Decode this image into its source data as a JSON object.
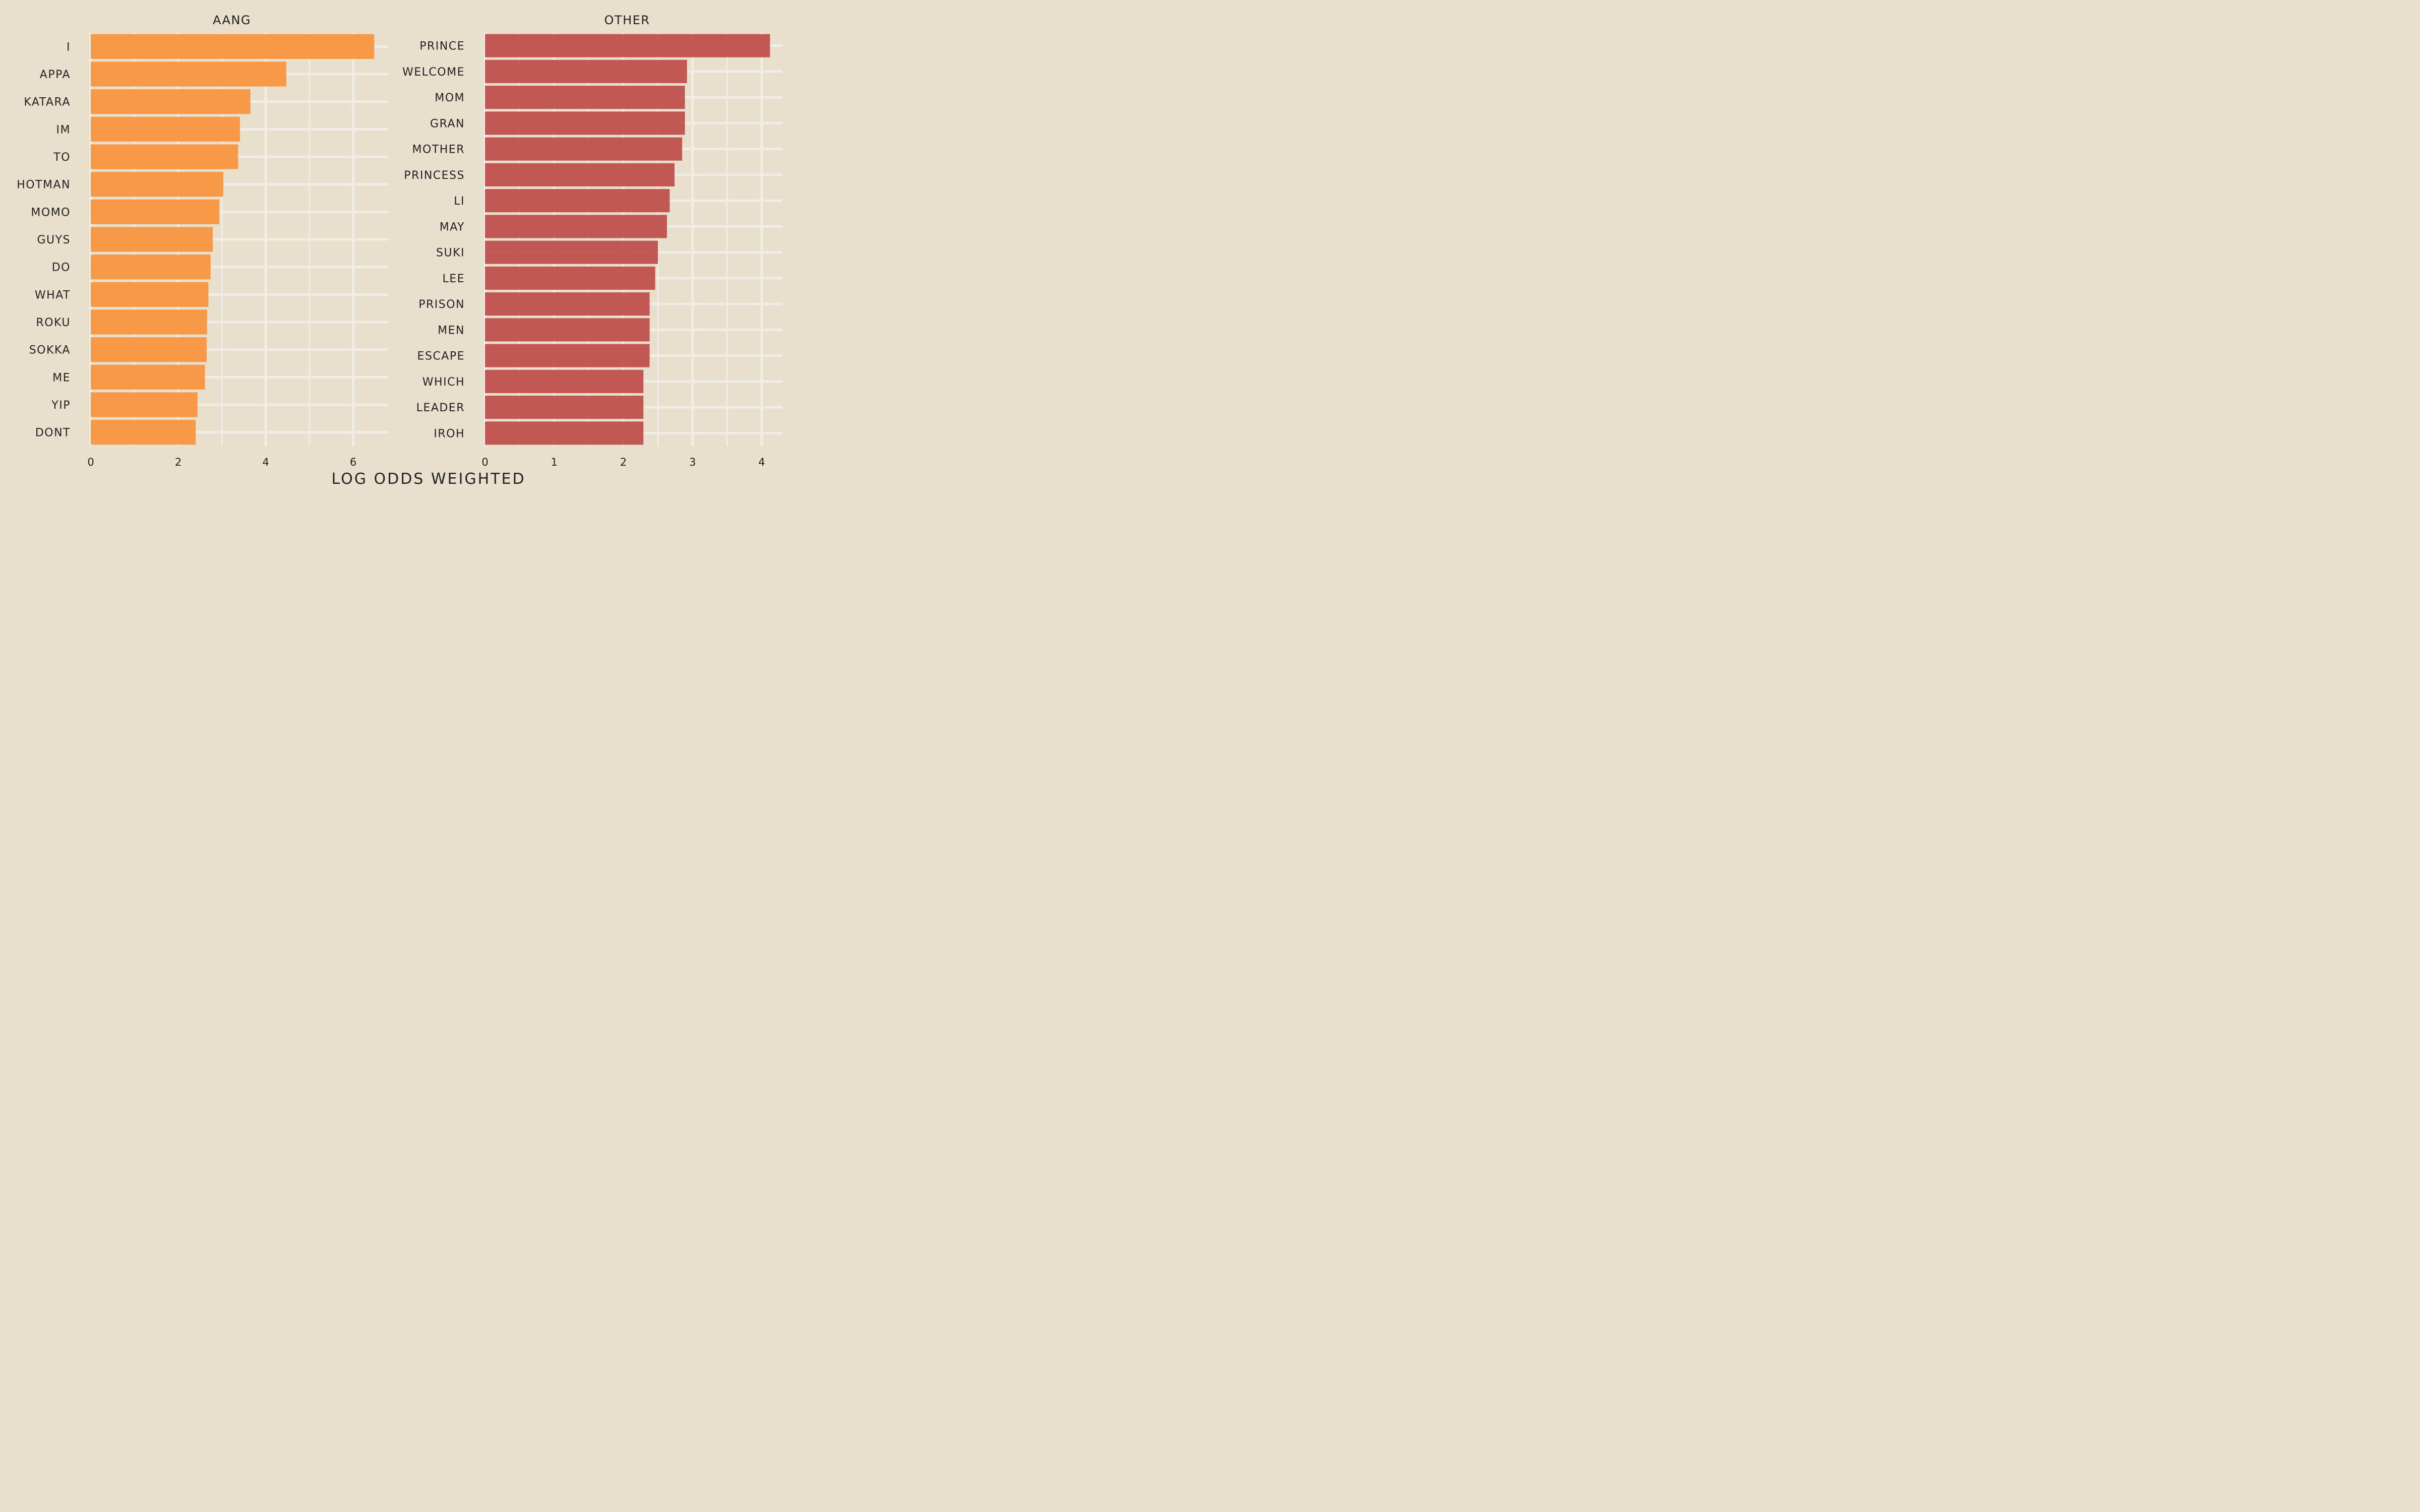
{
  "chart_data": [
    {
      "type": "bar",
      "orientation": "horizontal",
      "title": "AANG",
      "color": "#f8953f",
      "categories": [
        "I",
        "APPA",
        "KATARA",
        "IM",
        "TO",
        "HOTMAN",
        "MOMO",
        "GUYS",
        "DO",
        "WHAT",
        "ROKU",
        "SOKKA",
        "ME",
        "YIP",
        "DONT"
      ],
      "values": [
        6.48,
        4.47,
        3.65,
        3.41,
        3.37,
        3.03,
        2.94,
        2.79,
        2.74,
        2.69,
        2.66,
        2.65,
        2.61,
        2.44,
        2.4
      ],
      "xlim": [
        0,
        6.8
      ],
      "xticks": [
        0,
        2,
        4,
        6
      ]
    },
    {
      "type": "bar",
      "orientation": "horizontal",
      "title": "OTHER",
      "color": "#c0504d",
      "categories": [
        "PRINCE",
        "WELCOME",
        "MOM",
        "GRAN",
        "MOTHER",
        "PRINCESS",
        "LI",
        "MAY",
        "SUKI",
        "LEE",
        "PRISON",
        "MEN",
        "ESCAPE",
        "WHICH",
        "LEADER",
        "IROH"
      ],
      "values": [
        4.12,
        2.92,
        2.89,
        2.89,
        2.85,
        2.74,
        2.67,
        2.63,
        2.5,
        2.46,
        2.38,
        2.38,
        2.38,
        2.29,
        2.29,
        2.29
      ],
      "xlim": [
        0,
        4.3
      ],
      "xticks": [
        0,
        1,
        2,
        3,
        4
      ]
    }
  ],
  "xlabel": "LOG ODDS WEIGHTED",
  "grid": true,
  "background": "#e8e0cc",
  "gridColor": "#f0ede6"
}
